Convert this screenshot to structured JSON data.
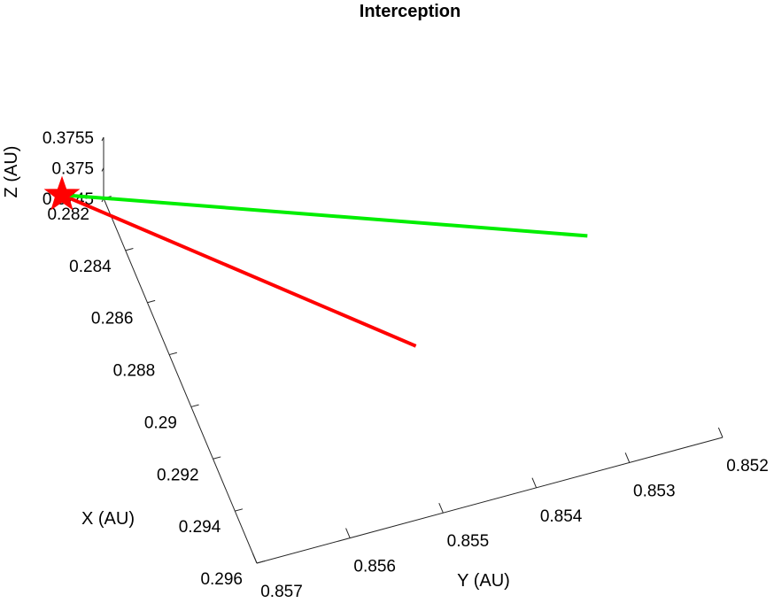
{
  "chart_data": {
    "type": "line3d",
    "title": "Interception",
    "xlabel": "X (AU)",
    "ylabel": "Y (AU)",
    "zlabel": "Z (AU)",
    "grid": false,
    "axes": {
      "x": {
        "range": [
          0.282,
          0.296
        ],
        "ticks": [
          0.282,
          0.284,
          0.286,
          0.288,
          0.29,
          0.292,
          0.294,
          0.296
        ],
        "tick_labels": [
          "0.282",
          "0.284",
          "0.286",
          "0.288",
          "0.29",
          "0.292",
          "0.294",
          "0.296"
        ]
      },
      "y": {
        "range": [
          0.857,
          0.852
        ],
        "ticks": [
          0.857,
          0.856,
          0.855,
          0.854,
          0.853,
          0.852
        ],
        "tick_labels": [
          "0.857",
          "0.856",
          "0.855",
          "0.854",
          "0.853",
          "0.852"
        ]
      },
      "z": {
        "range": [
          0.3745,
          0.3755
        ],
        "ticks": [
          0.3745,
          0.375,
          0.3755
        ],
        "tick_labels": [
          "0.3745",
          "0.375",
          "0.3755"
        ]
      }
    },
    "series": [
      {
        "color": "#ff0000",
        "points": [
          {
            "x": 0.2816,
            "y": 0.8574,
            "z": 0.37455
          },
          {
            "x": 0.2901,
            "y": 0.8546,
            "z": 0.37455
          }
        ]
      },
      {
        "color": "#00ee00",
        "points": [
          {
            "x": 0.2816,
            "y": 0.8574,
            "z": 0.37455
          },
          {
            "x": 0.2879,
            "y": 0.8525,
            "z": 0.37455
          }
        ]
      }
    ],
    "markers": [
      {
        "shape": "star",
        "color": "#ff0000",
        "x": 0.2816,
        "y": 0.8574,
        "z": 0.37455
      }
    ]
  }
}
